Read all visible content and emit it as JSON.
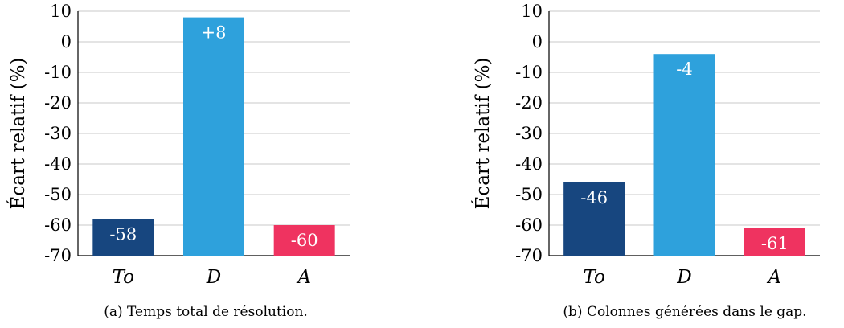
{
  "chart_data": [
    {
      "type": "bar",
      "categories": [
        "To",
        "D",
        "A"
      ],
      "values": [
        -58,
        8,
        -60
      ],
      "value_labels": [
        "-58",
        "+8",
        "-60"
      ],
      "colors": [
        "#17467f",
        "#2ea1dc",
        "#ef3360"
      ],
      "ylabel": "Écart relatif (%)",
      "ylim": [
        -70,
        10
      ],
      "yticks": [
        10,
        0,
        -10,
        -20,
        -30,
        -40,
        -50,
        -60,
        -70
      ],
      "ytick_labels": [
        "10",
        "0",
        "-10",
        "-20",
        "-30",
        "-40",
        "-50",
        "-60",
        "-70"
      ],
      "grid": true,
      "caption": "(a) Temps total de résolution."
    },
    {
      "type": "bar",
      "categories": [
        "To",
        "D",
        "A"
      ],
      "values": [
        -46,
        -4,
        -61
      ],
      "value_labels": [
        "-46",
        "-4",
        "-61"
      ],
      "colors": [
        "#17467f",
        "#2ea1dc",
        "#ef3360"
      ],
      "ylabel": "Écart relatif (%)",
      "ylim": [
        -70,
        10
      ],
      "yticks": [
        10,
        0,
        -10,
        -20,
        -30,
        -40,
        -50,
        -60,
        -70
      ],
      "ytick_labels": [
        "10",
        "0",
        "-10",
        "-20",
        "-30",
        "-40",
        "-50",
        "-60",
        "-70"
      ],
      "grid": true,
      "caption": "(b) Colonnes générées dans le gap."
    }
  ]
}
